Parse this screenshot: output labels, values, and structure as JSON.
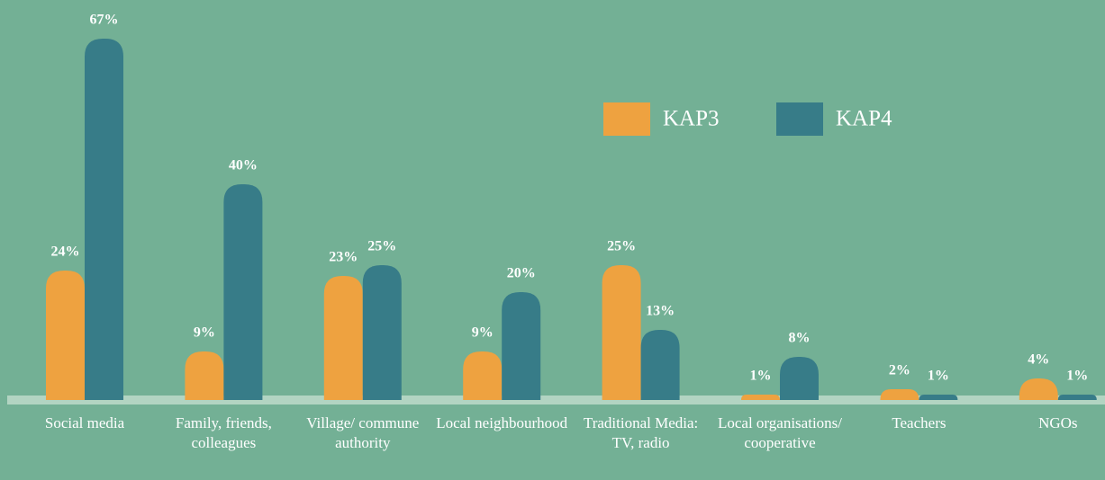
{
  "chart_data": {
    "type": "bar",
    "categories": [
      "Social media",
      "Family, friends, colleagues",
      "Village/ commune authority",
      "Local neighbourhood",
      "Traditional Media: TV, radio",
      "Local organisations/ cooperative",
      "Teachers",
      "NGOs"
    ],
    "series": [
      {
        "name": "KAP3",
        "color": "#eea240",
        "values": [
          24,
          9,
          23,
          9,
          25,
          1,
          2,
          4
        ],
        "value_labels": [
          "24%",
          "9%",
          "23%",
          "9%",
          "25%",
          "1%",
          "2%",
          "4%"
        ]
      },
      {
        "name": "KAP4",
        "color": "#377c88",
        "values": [
          67,
          40,
          25,
          20,
          13,
          8,
          1,
          1
        ],
        "value_labels": [
          "67%",
          "40%",
          "25%",
          "20%",
          "13%",
          "8%",
          "1%",
          "1%"
        ]
      }
    ],
    "ylim": [
      0,
      70
    ],
    "legend": "upper right"
  }
}
